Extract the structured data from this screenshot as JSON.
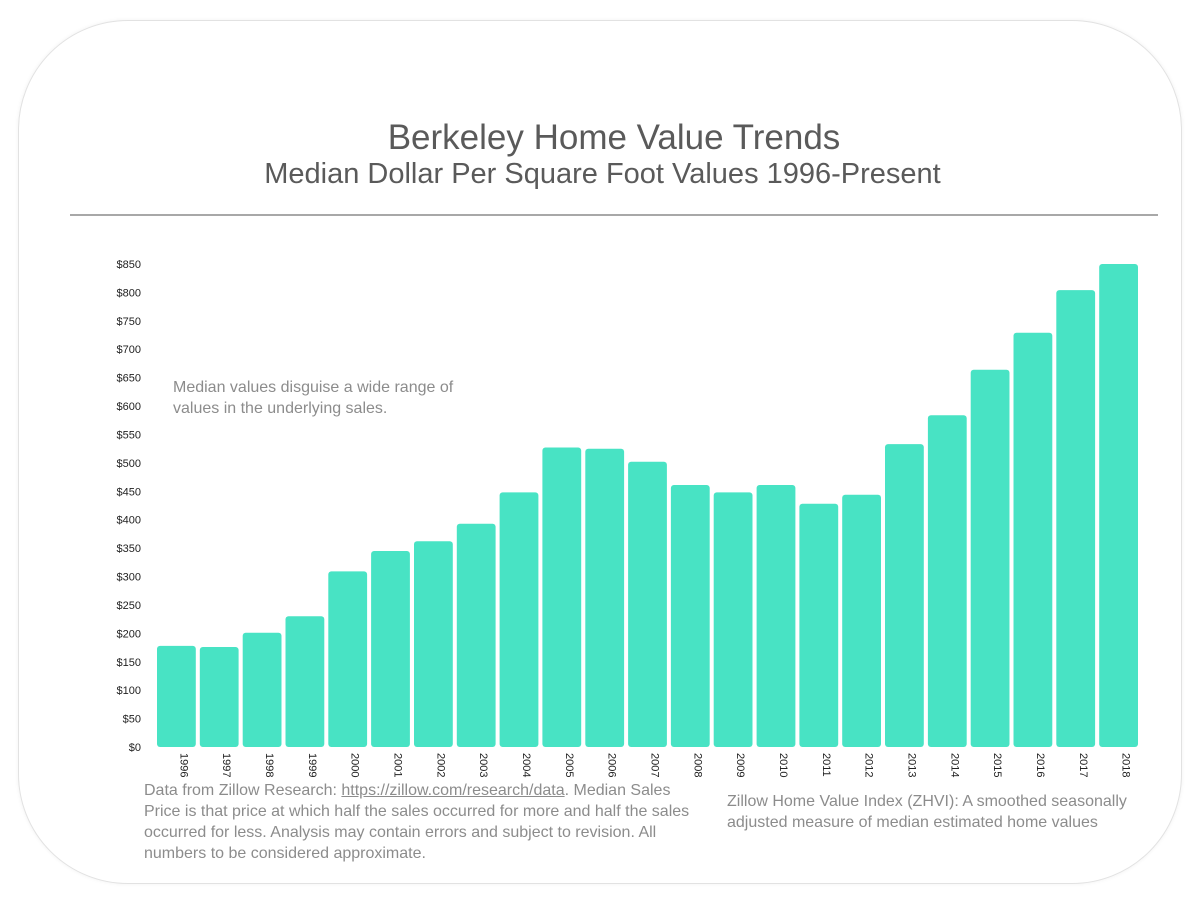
{
  "chart_data": {
    "type": "bar",
    "title": "Berkeley Home Value Trends",
    "subtitle": "Median Dollar Per Square Foot Values 1996-Present",
    "categories": [
      "1996",
      "1997",
      "1998",
      "1999",
      "2000",
      "2001",
      "2002",
      "2003",
      "2004",
      "2005",
      "2006",
      "2007",
      "2008",
      "2009",
      "2010",
      "2011",
      "2012",
      "2013",
      "2014",
      "2015",
      "2016",
      "2017",
      "2018"
    ],
    "values": [
      178,
      176,
      201,
      230,
      309,
      345,
      362,
      393,
      448,
      527,
      525,
      502,
      461,
      448,
      461,
      428,
      444,
      533,
      584,
      664,
      729,
      804,
      850
    ],
    "yticks": [
      "$0",
      "$50",
      "$100",
      "$150",
      "$200",
      "$250",
      "$300",
      "$350",
      "$400",
      "$450",
      "$500",
      "$550",
      "$600",
      "$650",
      "$700",
      "$750",
      "$800",
      "$850"
    ],
    "ylim": [
      0,
      850
    ],
    "grid": false,
    "bar_color": "#48e3c4",
    "annotation": "Median values disguise a wide range of values in the underlying sales."
  },
  "footer": {
    "left_prefix": "Data from Zillow Research: ",
    "left_link": "https://zillow.com/research/data",
    "left_suffix": ". Median Sales Price is that price at which half the sales occurred for more and half the sales occurred for less.  Analysis may contain errors and subject to revision.  All numbers to be considered approximate.",
    "right": "Zillow Home Value Index (ZHVI): A smoothed seasonally adjusted measure of median estimated home values"
  }
}
